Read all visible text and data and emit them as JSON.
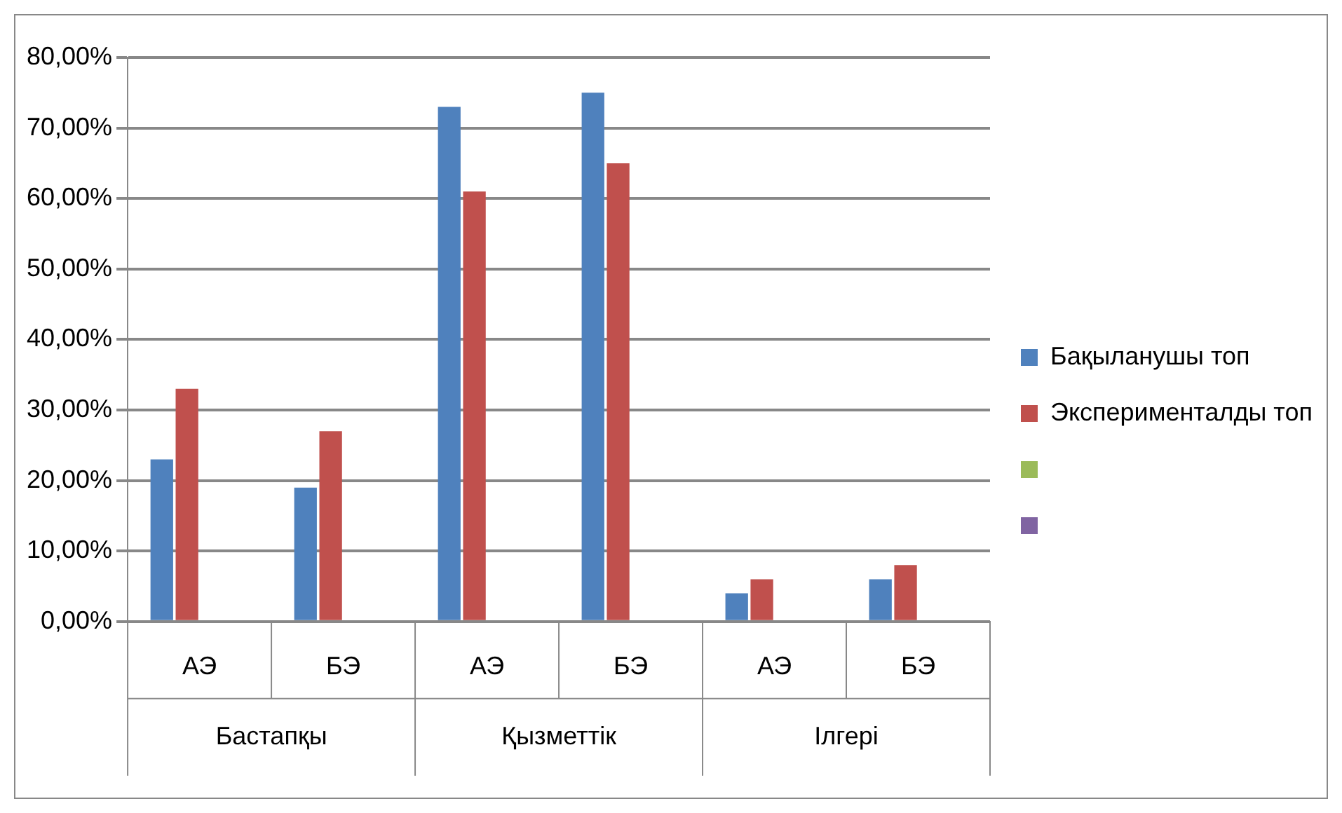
{
  "chart_data": {
    "type": "bar",
    "categories": [
      "АЭ",
      "БЭ",
      "АЭ",
      "БЭ",
      "АЭ",
      "БЭ"
    ],
    "series": [
      {
        "name": "Бақыланушы топ",
        "color": "#4f81bd",
        "values": [
          23,
          19,
          73,
          75,
          4,
          6
        ]
      },
      {
        "name": "Эксперименталды топ",
        "color": "#c0504d",
        "values": [
          33,
          27,
          61,
          65,
          6,
          8
        ]
      },
      {
        "color": "#9bbb59",
        "values": [
          null,
          null,
          null,
          null,
          null,
          null
        ]
      },
      {
        "color": "#8064a2",
        "values": [
          null,
          null,
          null,
          null,
          null,
          null
        ]
      }
    ],
    "annotations": [
      "Бастапқы",
      "Қызметтік",
      "Ілгері"
    ],
    "ylim": [
      0,
      80
    ],
    "yticks": [
      {
        "value": 0,
        "label": "0,00%"
      },
      {
        "value": 10,
        "label": "10,00%"
      },
      {
        "value": 20,
        "label": "20,00%"
      },
      {
        "value": 30,
        "label": "30,00%"
      },
      {
        "value": 40,
        "label": "40,00%"
      },
      {
        "value": 50,
        "label": "50,00%"
      },
      {
        "value": 60,
        "label": "60,00%"
      },
      {
        "value": 70,
        "label": "70,00%"
      },
      {
        "value": 80,
        "label": "80,00%"
      }
    ],
    "grid": "y",
    "legend": "right"
  }
}
